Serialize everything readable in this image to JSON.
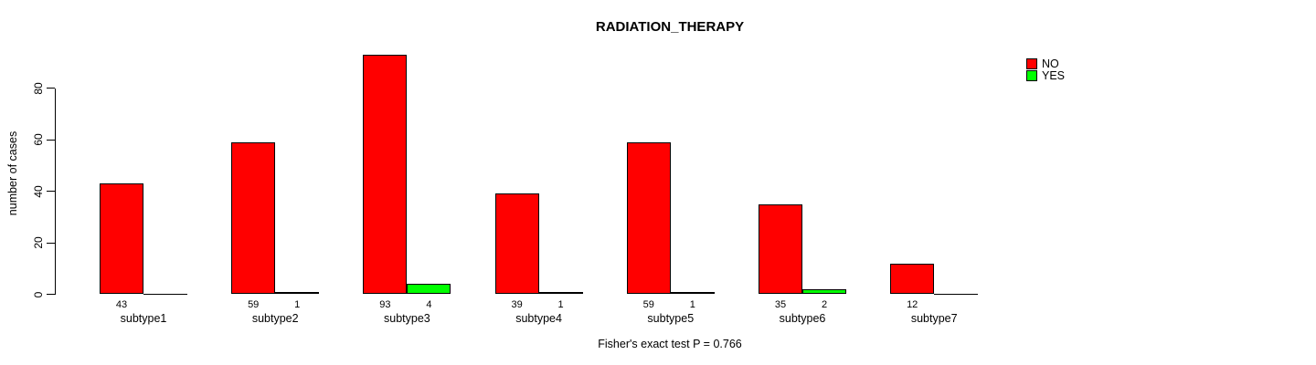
{
  "title": "RADIATION_THERAPY",
  "ylabel": "number of cases",
  "footer": "Fisher's exact test P = 0.766",
  "legend": {
    "items": [
      {
        "label": "NO",
        "color": "#ff0000"
      },
      {
        "label": "YES",
        "color": "#00ff00"
      }
    ]
  },
  "colors": {
    "no_bar": "#ff0000",
    "yes_bar": "#00ff00",
    "axis": "#000000",
    "background": "#ffffff"
  },
  "chart_data": {
    "type": "bar",
    "title": "RADIATION_THERAPY",
    "xlabel": "",
    "ylabel": "number of cases",
    "categories": [
      "subtype1",
      "subtype2",
      "subtype3",
      "subtype4",
      "subtype5",
      "subtype6",
      "subtype7"
    ],
    "series": [
      {
        "name": "NO",
        "color": "#ff0000",
        "values": [
          43,
          59,
          93,
          39,
          59,
          35,
          12
        ]
      },
      {
        "name": "YES",
        "color": "#00ff00",
        "values": [
          0,
          1,
          4,
          1,
          1,
          2,
          0
        ]
      }
    ],
    "bar_value_labels": [
      {
        "name": "NO",
        "labels": [
          "43",
          "59",
          "93",
          "39",
          "59",
          "35",
          "12"
        ]
      },
      {
        "name": "YES",
        "labels": [
          "",
          "1",
          "4",
          "1",
          "1",
          "2",
          ""
        ]
      }
    ],
    "yticks": [
      0,
      20,
      40,
      60,
      80
    ],
    "ylim": [
      0,
      93
    ],
    "grid": false,
    "legend_position": "top-right",
    "annotation": "Fisher's exact test P = 0.766"
  }
}
